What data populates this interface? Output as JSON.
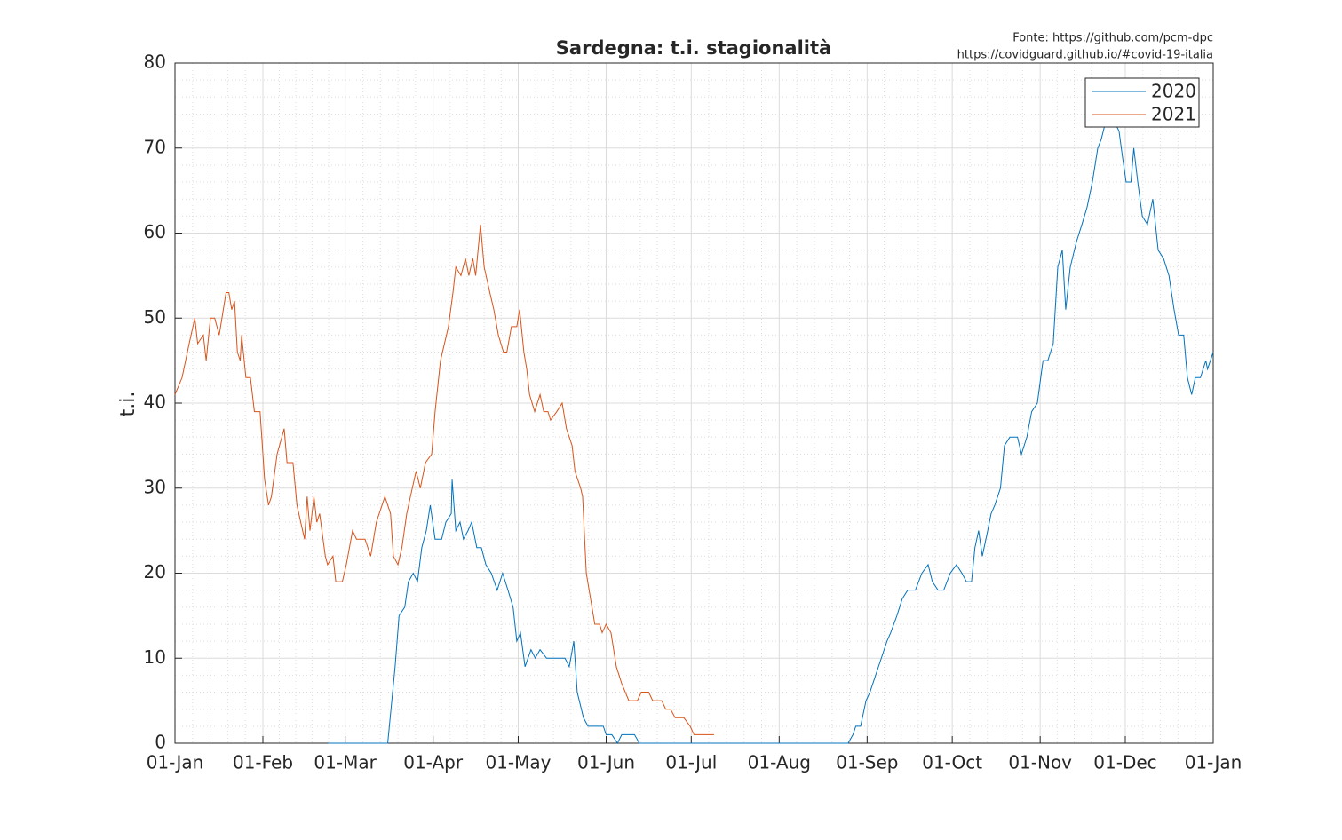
{
  "chart_data": {
    "type": "line",
    "title": "Sardegna: t.i. stagionalità",
    "source": [
      "Fonte: https://github.com/pcm-dpc",
      "https://covidguard.github.io/#covid-19-italia"
    ],
    "ylabel": "t.i.",
    "xlim": [
      0,
      366
    ],
    "ylim": [
      0,
      80
    ],
    "xticks": [
      {
        "value": 0,
        "label": "01-Jan"
      },
      {
        "value": 31,
        "label": "01-Feb"
      },
      {
        "value": 60,
        "label": "01-Mar"
      },
      {
        "value": 91,
        "label": "01-Apr"
      },
      {
        "value": 121,
        "label": "01-May"
      },
      {
        "value": 152,
        "label": "01-Jun"
      },
      {
        "value": 182,
        "label": "01-Jul"
      },
      {
        "value": 213,
        "label": "01-Aug"
      },
      {
        "value": 244,
        "label": "01-Sep"
      },
      {
        "value": 274,
        "label": "01-Oct"
      },
      {
        "value": 305,
        "label": "01-Nov"
      },
      {
        "value": 335,
        "label": "01-Dec"
      },
      {
        "value": 366,
        "label": "01-Jan"
      }
    ],
    "yticks": [
      0,
      10,
      20,
      30,
      40,
      50,
      60,
      70,
      80
    ],
    "grid": true,
    "minor_grid": true,
    "legend": "upper right",
    "series": [
      {
        "name": "2020",
        "color": "#0072bd",
        "x": [
          54,
          75,
          77.6,
          79,
          81,
          82.3,
          84,
          85.5,
          87,
          88.6,
          90,
          91.7,
          94,
          95.5,
          97.4,
          97.7,
          99,
          100.5,
          101.7,
          103.3,
          104.6,
          106.4,
          108,
          109.6,
          111.5,
          113.6,
          115.5,
          117.4,
          119.2,
          120.5,
          121.8,
          123.4,
          125.5,
          127,
          128.7,
          131,
          135.6,
          137.5,
          139,
          140.6,
          141.8,
          144,
          145.6,
          151,
          152,
          154,
          156,
          157.5,
          162,
          163.7,
          237.3,
          239,
          240,
          241.7,
          243.6,
          245,
          247,
          249,
          251,
          252.3,
          254.5,
          256.4,
          258.3,
          261,
          263.3,
          265.5,
          267,
          269,
          271,
          273.3,
          275.5,
          277.4,
          279,
          280.8,
          282,
          283.3,
          284.6,
          286.5,
          287.7,
          289,
          291,
          292.4,
          294.3,
          297,
          298.4,
          300.3,
          302,
          304,
          306,
          307.7,
          309.6,
          311.2,
          312.8,
          314,
          315.6,
          317.8,
          319.7,
          321.5,
          323.4,
          325.3,
          326.5,
          328,
          329.7,
          331.3,
          332.8,
          334,
          335.3,
          337,
          338,
          339.4,
          341,
          342.8,
          344.7,
          346.6,
          348.5,
          350.4,
          352.2,
          353.8,
          355.6,
          356.9,
          358.4,
          359.7,
          361.5,
          363.4,
          364,
          366
        ],
        "values": [
          0,
          0,
          9,
          15,
          16,
          19,
          20,
          19,
          23,
          25,
          28,
          24,
          24,
          26,
          27,
          31,
          25,
          26,
          24,
          25,
          26,
          23,
          23,
          21,
          20,
          18,
          20,
          18,
          16,
          12,
          13,
          9,
          11,
          10,
          11,
          10,
          10,
          10,
          9,
          12,
          6,
          3,
          2,
          2,
          1,
          1,
          0,
          1,
          1,
          0,
          0,
          1,
          2,
          2,
          5,
          6,
          8,
          10,
          12,
          13,
          15,
          17,
          18,
          18,
          20,
          21,
          19,
          18,
          18,
          20,
          21,
          20,
          19,
          19,
          23,
          25,
          22,
          25,
          27,
          28,
          30,
          35,
          36,
          36,
          34,
          36,
          39,
          40,
          45,
          45,
          47,
          56,
          58,
          51,
          56,
          59,
          61,
          63,
          66,
          70,
          71,
          73,
          74,
          73,
          72,
          69,
          66,
          66,
          70,
          66,
          62,
          61,
          64,
          58,
          57,
          55,
          51,
          48,
          48,
          43,
          41,
          43,
          43,
          45,
          44,
          46
        ]
      },
      {
        "name": "2021",
        "color": "#d95319",
        "x": [
          0,
          2.5,
          5,
          7,
          8,
          10,
          11,
          12.5,
          14,
          15.6,
          18,
          19,
          20,
          21,
          22,
          23,
          23.5,
          25,
          26.6,
          28,
          30,
          31.6,
          33,
          34,
          36,
          38.5,
          39.5,
          41.6,
          43,
          45,
          45.7,
          46.6,
          47.6,
          49,
          50,
          51,
          53,
          53.8,
          55.7,
          56.7,
          59,
          60.4,
          62.6,
          64,
          67,
          69,
          71,
          72,
          74,
          76,
          77,
          78.6,
          80,
          81.7,
          83,
          85,
          86.5,
          88.3,
          90.5,
          91.7,
          93.6,
          95,
          96.4,
          98,
          99,
          100.8,
          102.4,
          103.6,
          105,
          106,
          107.7,
          109,
          111,
          112.4,
          114,
          115.8,
          117,
          118.6,
          120.5,
          121.5,
          123,
          124,
          125,
          126.8,
          128.7,
          130,
          131.5,
          132.4,
          134.6,
          136.5,
          138,
          140,
          141,
          143,
          143.7,
          145,
          146.5,
          148,
          149.7,
          150.6,
          152,
          153.7,
          155.6,
          157.5,
          160,
          163,
          164.4,
          167,
          168.4,
          171.6,
          173,
          174.7,
          176.3,
          179.4,
          181.6,
          183,
          190
        ],
        "values": [
          41,
          43,
          47,
          50,
          47,
          48,
          45,
          50,
          50,
          48,
          53,
          53,
          51,
          52,
          46,
          45,
          48,
          43,
          43,
          39,
          39,
          31,
          28,
          29,
          34,
          37,
          33,
          33,
          28,
          25,
          24,
          29,
          25,
          29,
          26,
          27,
          22,
          21,
          22,
          19,
          19,
          21,
          25,
          24,
          24,
          22,
          26,
          27,
          29,
          27,
          22,
          21,
          23,
          27,
          29,
          32,
          30,
          33,
          34,
          39,
          45,
          47,
          49,
          53,
          56,
          55,
          57,
          55,
          57,
          55,
          61,
          56,
          53,
          51,
          48,
          46,
          46,
          49,
          49,
          51,
          46,
          44,
          41,
          39,
          41,
          39,
          39,
          38,
          39,
          40,
          37,
          35,
          32,
          30,
          29,
          20,
          17,
          14,
          14,
          13,
          14,
          13,
          9,
          7,
          5,
          5,
          6,
          6,
          5,
          5,
          4,
          4,
          3,
          3,
          2,
          1,
          1
        ]
      }
    ]
  }
}
